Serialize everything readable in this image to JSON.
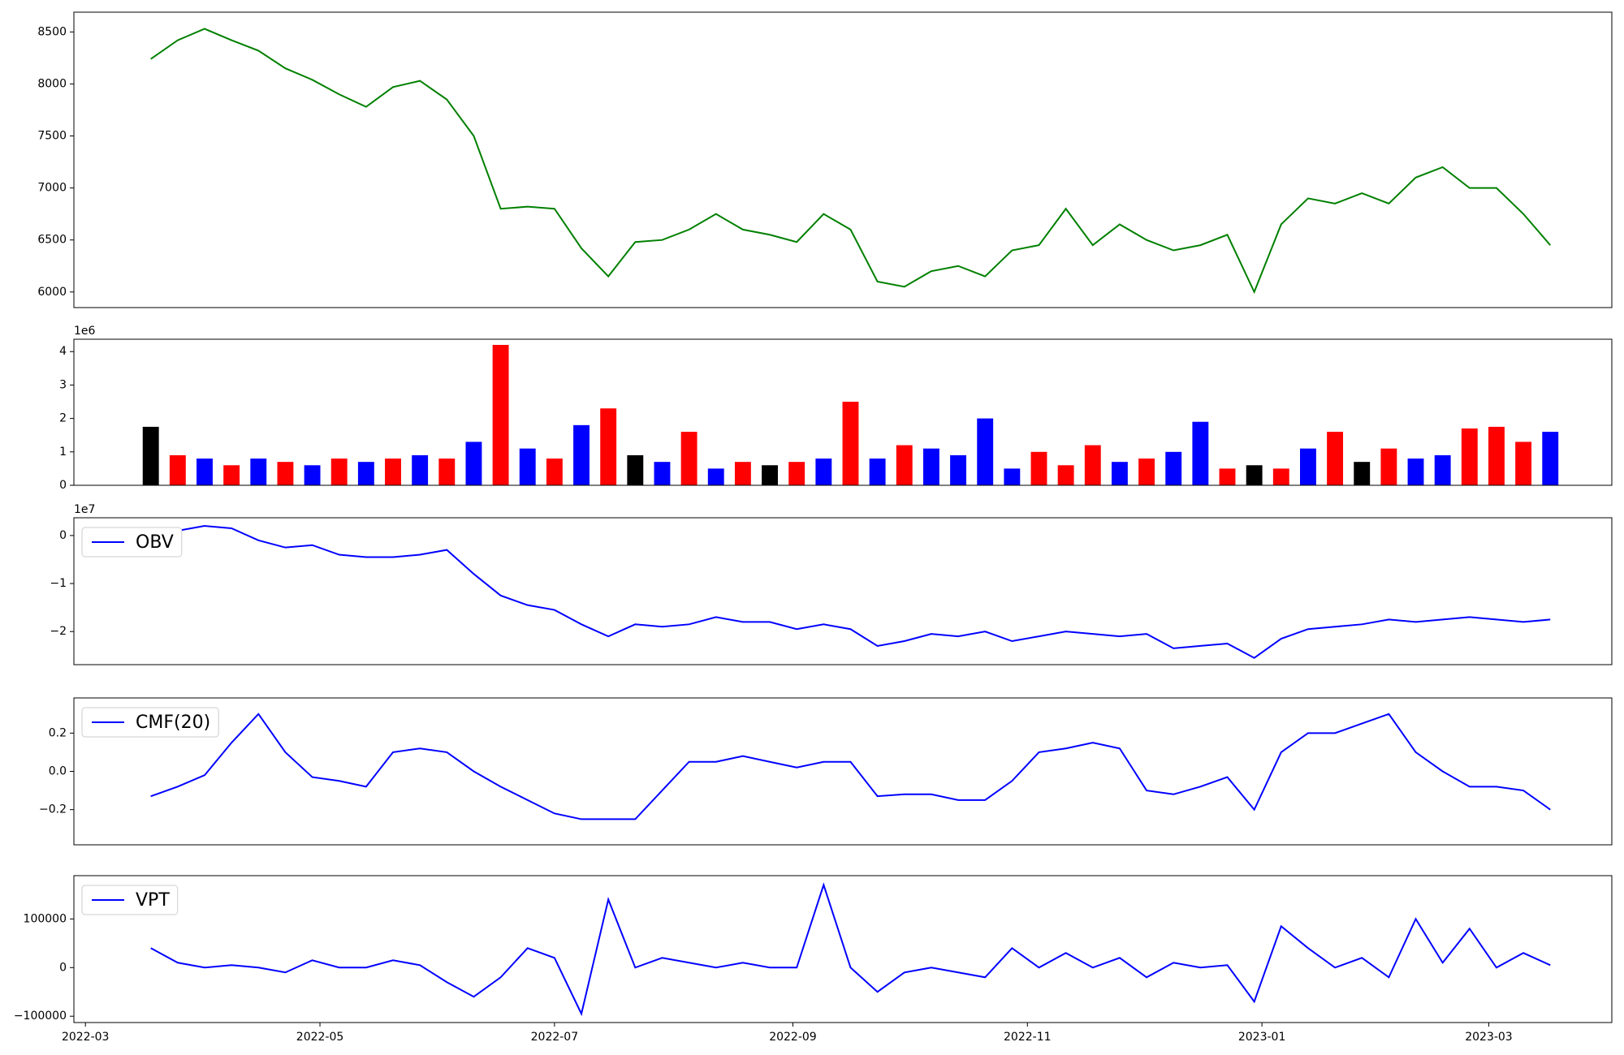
{
  "chart_data": [
    {
      "type": "line",
      "x": [
        17,
        24,
        31,
        38,
        45,
        52,
        59,
        66,
        73,
        80,
        87,
        94,
        101,
        108,
        115,
        122,
        129,
        136,
        143,
        150,
        157,
        164,
        171,
        178,
        185,
        192,
        199,
        206,
        213,
        220,
        227,
        234,
        241,
        248,
        255,
        262,
        269,
        276,
        283,
        290,
        297,
        304,
        311,
        318,
        325,
        332,
        339,
        346,
        353,
        360,
        367,
        374,
        381
      ],
      "series": [
        {
          "color": "#008000",
          "values": [
            8240,
            8420,
            8530,
            8420,
            8320,
            8150,
            8040,
            7900,
            7780,
            7970,
            8030,
            7850,
            7500,
            6800,
            6820,
            6800,
            6420,
            6150,
            6480,
            6500,
            6600,
            6750,
            6600,
            6550,
            6480,
            6750,
            6600,
            6100,
            6050,
            6200,
            6250,
            6150,
            6400,
            6450,
            6800,
            6450,
            6650,
            6500,
            6400,
            6450,
            6550,
            6000,
            6650,
            6900,
            6850,
            6950,
            6850,
            7100,
            7200,
            7000,
            7000,
            6750,
            6450
          ]
        }
      ],
      "xlim": [
        -3,
        397
      ],
      "ylim": [
        5850,
        8690
      ],
      "yticks": [
        6000,
        6500,
        7000,
        7500,
        8000,
        8500
      ]
    },
    {
      "type": "bar",
      "x": [
        17,
        24,
        31,
        38,
        45,
        52,
        59,
        66,
        73,
        80,
        87,
        94,
        101,
        108,
        115,
        122,
        129,
        136,
        143,
        150,
        157,
        164,
        171,
        178,
        185,
        192,
        199,
        206,
        213,
        220,
        227,
        234,
        241,
        248,
        255,
        262,
        269,
        276,
        283,
        290,
        297,
        304,
        311,
        318,
        325,
        332,
        339,
        346,
        353,
        360,
        367,
        374,
        381
      ],
      "series": [
        {
          "values": [
            1750000,
            900000,
            800000,
            600000,
            800000,
            700000,
            600000,
            800000,
            700000,
            800000,
            900000,
            800000,
            1300000,
            4200000,
            1100000,
            800000,
            1800000,
            2300000,
            900000,
            700000,
            1600000,
            500000,
            700000,
            600000,
            700000,
            800000,
            2500000,
            800000,
            1200000,
            1100000,
            900000,
            2000000,
            500000,
            1000000,
            600000,
            1200000,
            700000,
            800000,
            1000000,
            1900000,
            500000,
            600000,
            500000,
            1100000,
            1600000,
            700000,
            1100000,
            800000,
            900000,
            1700000,
            1750000,
            1300000,
            1600000
          ],
          "colors": [
            "#000000",
            "#ff0000",
            "#0000ff",
            "#ff0000",
            "#0000ff",
            "#ff0000",
            "#0000ff",
            "#ff0000",
            "#0000ff",
            "#ff0000",
            "#0000ff",
            "#ff0000",
            "#0000ff",
            "#ff0000",
            "#0000ff",
            "#ff0000",
            "#0000ff",
            "#ff0000",
            "#000000",
            "#0000ff",
            "#ff0000",
            "#0000ff",
            "#ff0000",
            "#000000",
            "#ff0000",
            "#0000ff",
            "#ff0000",
            "#0000ff",
            "#ff0000",
            "#0000ff",
            "#0000ff",
            "#0000ff",
            "#0000ff",
            "#ff0000",
            "#ff0000",
            "#ff0000",
            "#0000ff",
            "#ff0000",
            "#0000ff",
            "#0000ff",
            "#ff0000",
            "#000000",
            "#ff0000",
            "#0000ff",
            "#ff0000",
            "#000000",
            "#ff0000",
            "#0000ff",
            "#0000ff",
            "#ff0000",
            "#ff0000",
            "#ff0000",
            "#0000ff"
          ]
        }
      ],
      "xlim": [
        -3,
        397
      ],
      "ylim": [
        0,
        4370000
      ],
      "offset_label": "1e6",
      "yticks": [
        0,
        {
          "value": 1000000,
          "label": "1"
        },
        {
          "value": 2000000,
          "label": "2"
        },
        {
          "value": 3000000,
          "label": "3"
        },
        {
          "value": 4000000,
          "label": "4"
        }
      ]
    },
    {
      "type": "line",
      "x": [
        17,
        24,
        31,
        38,
        45,
        52,
        59,
        66,
        73,
        80,
        87,
        94,
        101,
        108,
        115,
        122,
        129,
        136,
        143,
        150,
        157,
        164,
        171,
        178,
        185,
        192,
        199,
        206,
        213,
        220,
        227,
        234,
        241,
        248,
        255,
        262,
        269,
        276,
        283,
        290,
        297,
        304,
        311,
        318,
        325,
        332,
        339,
        346,
        353,
        360,
        367,
        374,
        381
      ],
      "series": [
        {
          "name": "OBV",
          "color": "#0000ff",
          "values": [
            0,
            1000000,
            2000000,
            1500000,
            -1000000,
            -2500000,
            -2000000,
            -4000000,
            -4500000,
            -4500000,
            -4000000,
            -3000000,
            -8000000,
            -12500000,
            -14500000,
            -15500000,
            -18500000,
            -21000000,
            -18500000,
            -19000000,
            -18500000,
            -17000000,
            -18000000,
            -18000000,
            -19500000,
            -18500000,
            -19500000,
            -23000000,
            -22000000,
            -20500000,
            -21000000,
            -20000000,
            -22000000,
            -21000000,
            -20000000,
            -20500000,
            -21000000,
            -20500000,
            -23500000,
            -23000000,
            -22500000,
            -25500000,
            -21500000,
            -19500000,
            -19000000,
            -18500000,
            -17500000,
            -18000000,
            -17500000,
            -17000000,
            -17500000,
            -18000000,
            -17500000
          ]
        }
      ],
      "xlim": [
        -3,
        397
      ],
      "ylim": [
        -26900000,
        3700000
      ],
      "offset_label": "1e7",
      "legend": true,
      "yticks": [
        {
          "value": -20000000,
          "label": "−2"
        },
        {
          "value": -10000000,
          "label": "−1"
        },
        0
      ]
    },
    {
      "type": "line",
      "x": [
        17,
        24,
        31,
        38,
        45,
        52,
        59,
        66,
        73,
        80,
        87,
        94,
        101,
        108,
        115,
        122,
        129,
        136,
        143,
        150,
        157,
        164,
        171,
        178,
        185,
        192,
        199,
        206,
        213,
        220,
        227,
        234,
        241,
        248,
        255,
        262,
        269,
        276,
        283,
        290,
        297,
        304,
        311,
        318,
        325,
        332,
        339,
        346,
        353,
        360,
        367,
        374,
        381
      ],
      "series": [
        {
          "name": "CMF(20)",
          "color": "#0000ff",
          "values": [
            -0.13,
            -0.08,
            -0.02,
            0.15,
            0.3,
            0.1,
            -0.03,
            -0.05,
            -0.08,
            0.1,
            0.12,
            0.1,
            0.0,
            -0.08,
            -0.15,
            -0.22,
            -0.25,
            -0.25,
            -0.25,
            -0.1,
            0.05,
            0.05,
            0.08,
            0.05,
            0.02,
            0.05,
            0.05,
            -0.13,
            -0.12,
            -0.12,
            -0.15,
            -0.15,
            -0.05,
            0.1,
            0.12,
            0.15,
            0.12,
            -0.1,
            -0.12,
            -0.08,
            -0.03,
            -0.2,
            0.1,
            0.2,
            0.2,
            0.25,
            0.3,
            0.1,
            0.0,
            -0.08,
            -0.08,
            -0.1,
            -0.2
          ]
        }
      ],
      "xlim": [
        -3,
        397
      ],
      "ylim": [
        -0.384,
        0.384
      ],
      "legend": true,
      "yticks": [
        {
          "value": -0.2,
          "label": "−0.2"
        },
        {
          "value": 0,
          "label": "0.0"
        },
        0.2
      ]
    },
    {
      "type": "line",
      "x": [
        17,
        24,
        31,
        38,
        45,
        52,
        59,
        66,
        73,
        80,
        87,
        94,
        101,
        108,
        115,
        122,
        129,
        136,
        143,
        150,
        157,
        164,
        171,
        178,
        185,
        192,
        199,
        206,
        213,
        220,
        227,
        234,
        241,
        248,
        255,
        262,
        269,
        276,
        283,
        290,
        297,
        304,
        311,
        318,
        325,
        332,
        339,
        346,
        353,
        360,
        367,
        374,
        381
      ],
      "series": [
        {
          "name": "VPT",
          "color": "#0000ff",
          "values": [
            40000,
            10000,
            0,
            5000,
            0,
            -10000,
            15000,
            0,
            0,
            15000,
            5000,
            -30000,
            -60000,
            -20000,
            40000,
            20000,
            -95000,
            140000,
            0,
            20000,
            10000,
            0,
            10000,
            0,
            0,
            170000,
            0,
            -50000,
            -10000,
            0,
            -10000,
            -20000,
            40000,
            0,
            30000,
            0,
            20000,
            -20000,
            10000,
            0,
            5000,
            -70000,
            85000,
            40000,
            0,
            20000,
            -20000,
            100000,
            10000,
            80000,
            0,
            30000,
            5000
          ]
        }
      ],
      "xlim": [
        -3,
        397
      ],
      "ylim": [
        -113000,
        189000
      ],
      "legend": true,
      "yticks": [
        {
          "value": -100000,
          "label": "−100000"
        },
        0,
        100000
      ],
      "xticks": [
        {
          "value": 0,
          "label": "2022-03"
        },
        {
          "value": 61,
          "label": "2022-05"
        },
        {
          "value": 122,
          "label": "2022-07"
        },
        {
          "value": 184,
          "label": "2022-09"
        },
        {
          "value": 245,
          "label": "2022-11"
        },
        {
          "value": 306,
          "label": "2023-01"
        },
        {
          "value": 365,
          "label": "2023-03"
        }
      ]
    }
  ]
}
